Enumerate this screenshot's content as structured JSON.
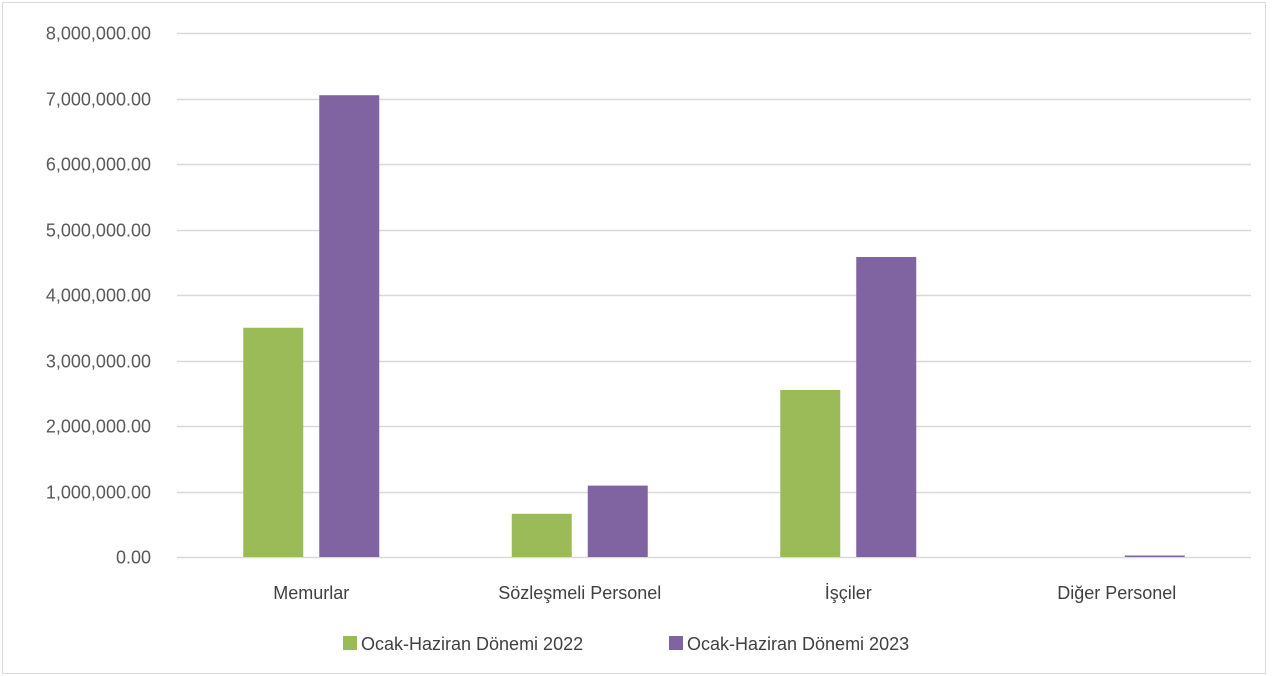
{
  "chart_data": {
    "type": "bar",
    "categories": [
      "Memurlar",
      "Sözleşmeli Personel",
      "İşçiler",
      "Diğer Personel"
    ],
    "series": [
      {
        "name": "Ocak-Haziran Dönemi 2022",
        "color": "#9bbb59",
        "values": [
          3500000,
          660000,
          2550000,
          0
        ]
      },
      {
        "name": "Ocak-Haziran Dönemi 2023",
        "color": "#8064a2",
        "values": [
          7050000,
          1090000,
          4580000,
          20000
        ]
      }
    ],
    "ylim": [
      0,
      8000000
    ],
    "yticks": [
      {
        "value": 0,
        "label": "0.00"
      },
      {
        "value": 1000000,
        "label": "1,000,000.00"
      },
      {
        "value": 2000000,
        "label": "2,000,000.00"
      },
      {
        "value": 3000000,
        "label": "3,000,000.00"
      },
      {
        "value": 4000000,
        "label": "4,000,000.00"
      },
      {
        "value": 5000000,
        "label": "5,000,000.00"
      },
      {
        "value": 6000000,
        "label": "6,000,000.00"
      },
      {
        "value": 7000000,
        "label": "7,000,000.00"
      },
      {
        "value": 8000000,
        "label": "8,000,000.00"
      }
    ],
    "grid": true,
    "legend_position": "bottom",
    "title": "",
    "xlabel": "",
    "ylabel": ""
  }
}
